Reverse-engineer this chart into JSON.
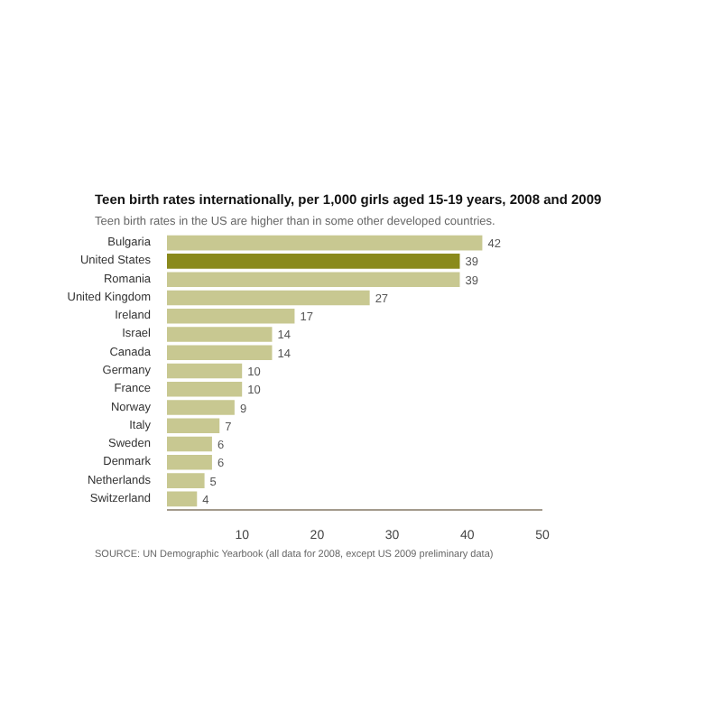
{
  "chart_data": {
    "type": "bar",
    "orientation": "horizontal",
    "title": "Teen birth rates internationally, per 1,000 girls aged 15-19 years, 2008 and 2009",
    "subtitle": "Teen birth rates in the US are higher than in some other developed countries.",
    "categories": [
      "Bulgaria",
      "United States",
      "Romania",
      "United Kingdom",
      "Ireland",
      "Israel",
      "Canada",
      "Germany",
      "France",
      "Norway",
      "Italy",
      "Sweden",
      "Denmark",
      "Netherlands",
      "Switzerland"
    ],
    "values": [
      42,
      39,
      39,
      27,
      17,
      14,
      14,
      10,
      10,
      9,
      7,
      6,
      6,
      5,
      4
    ],
    "colors": [
      "#c8c891",
      "#8a8a1c",
      "#c8c891",
      "#c8c891",
      "#c8c891",
      "#c8c891",
      "#c8c891",
      "#c8c891",
      "#c8c891",
      "#c8c891",
      "#c8c891",
      "#c8c891",
      "#c8c891",
      "#c8c891",
      "#c8c891"
    ],
    "xlim": [
      0,
      50
    ],
    "xticks": [
      10,
      20,
      30,
      40,
      50
    ],
    "data_labels": true,
    "annotations": [
      "SOURCE: UN Demographic Yearbook (all data for 2008, except US 2009 preliminary data)"
    ]
  }
}
